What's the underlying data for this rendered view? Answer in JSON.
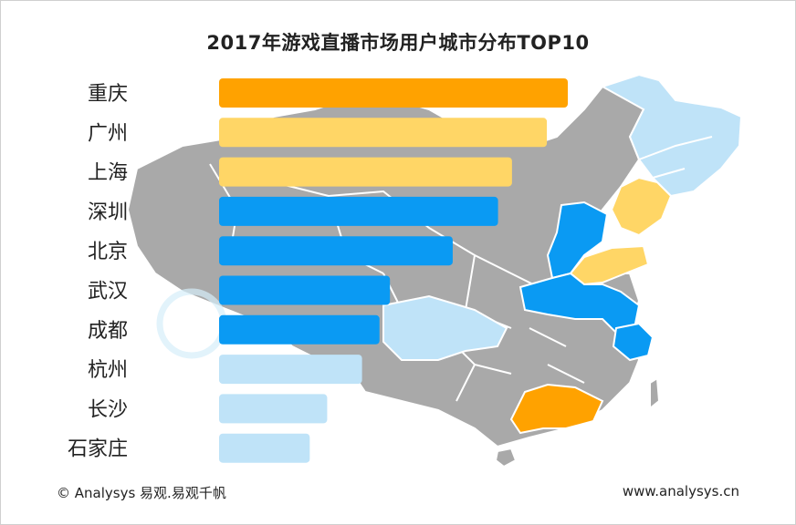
{
  "chart_data": {
    "type": "bar",
    "orientation": "horizontal",
    "title": "2017年游戏直播市场用户城市分布TOP10",
    "categories": [
      "重庆",
      "广州",
      "上海",
      "深圳",
      "北京",
      "武汉",
      "成都",
      "杭州",
      "长沙",
      "石家庄"
    ],
    "values": [
      100,
      94,
      84,
      80,
      67,
      49,
      46,
      41,
      31,
      26
    ],
    "bar_colors": [
      "#FFA200",
      "#FFD666",
      "#FFD666",
      "#0A9AF3",
      "#0A9AF3",
      "#0A9AF3",
      "#0A9AF3",
      "#BFE3F8",
      "#BFE3F8",
      "#BFE3F8"
    ],
    "xlim": [
      0,
      100
    ],
    "grid": false,
    "legend": "none"
  },
  "colors": {
    "map_gray": "#A9A9A9",
    "map_border": "#ffffff",
    "map_light_blue": "#BFE3F8",
    "map_blue": "#0A9AF3",
    "map_yellow": "#FFD666",
    "map_orange": "#FFA200"
  },
  "footer": {
    "source": "© Analysys 易观.易观千帆",
    "website": "www.analysys.cn"
  }
}
